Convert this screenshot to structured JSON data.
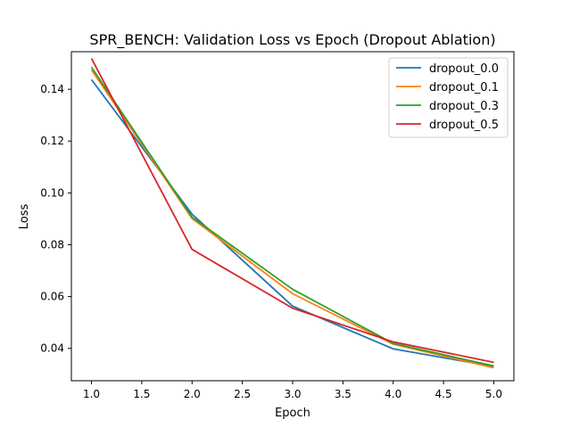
{
  "chart_data": {
    "type": "line",
    "title": "SPR_BENCH: Validation Loss vs Epoch (Dropout Ablation)",
    "xlabel": "Epoch",
    "ylabel": "Loss",
    "xlim": [
      0.8,
      5.2
    ],
    "ylim": [
      0.0275,
      0.1545
    ],
    "xticks": [
      1.0,
      1.5,
      2.0,
      2.5,
      3.0,
      3.5,
      4.0,
      4.5,
      5.0
    ],
    "xtick_labels": [
      "1.0",
      "1.5",
      "2.0",
      "2.5",
      "3.0",
      "3.5",
      "4.0",
      "4.5",
      "5.0"
    ],
    "yticks": [
      0.04,
      0.06,
      0.08,
      0.1,
      0.12,
      0.14
    ],
    "ytick_labels": [
      "0.04",
      "0.06",
      "0.08",
      "0.10",
      "0.12",
      "0.14"
    ],
    "grid": false,
    "legend_position": "top-right",
    "x": [
      1,
      2,
      3,
      4,
      5
    ],
    "series": [
      {
        "name": "dropout_0.0",
        "color": "#1f77b4",
        "values": [
          0.1437,
          0.0918,
          0.0563,
          0.0398,
          0.033
        ]
      },
      {
        "name": "dropout_0.1",
        "color": "#ff7f0e",
        "values": [
          0.1475,
          0.0901,
          0.0611,
          0.0416,
          0.0325
        ]
      },
      {
        "name": "dropout_0.3",
        "color": "#2ca02c",
        "values": [
          0.1485,
          0.0906,
          0.0628,
          0.0419,
          0.0332
        ]
      },
      {
        "name": "dropout_0.5",
        "color": "#d62728",
        "values": [
          0.1519,
          0.0782,
          0.0555,
          0.0425,
          0.0346
        ]
      }
    ]
  }
}
